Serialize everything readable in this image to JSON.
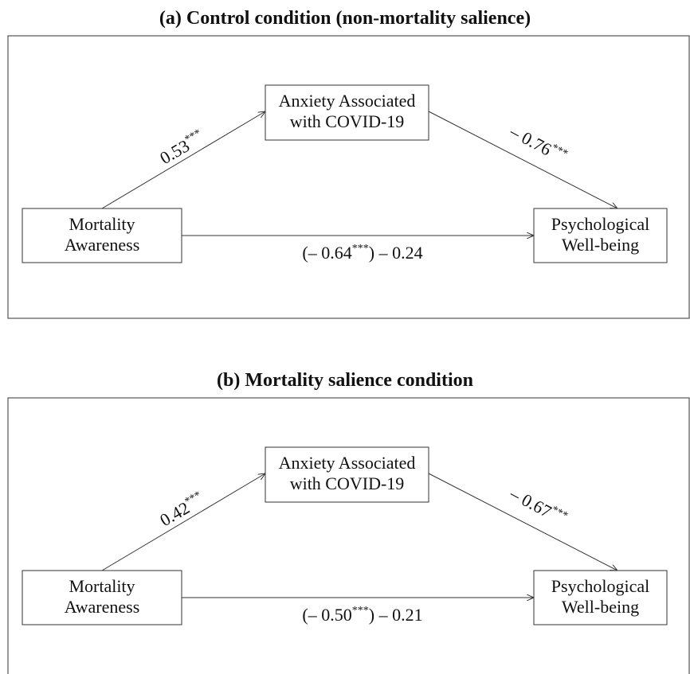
{
  "panels": [
    {
      "title": "(a) Control condition (non-mortality salience)",
      "nodes": [
        {
          "lines": [
            "Mortality",
            "Awareness"
          ]
        },
        {
          "lines": [
            "Anxiety Associated",
            "with COVID-19"
          ]
        },
        {
          "lines": [
            "Psychological",
            "Well-being"
          ]
        }
      ],
      "edges": [
        {
          "pre": "0.53",
          "sup": "***"
        },
        {
          "pre": "– 0.76",
          "sup": "***"
        },
        {
          "pre": "(– 0.64",
          "sup": "***",
          "post": ") – 0.24"
        }
      ]
    },
    {
      "title": "(b) Mortality salience condition",
      "nodes": [
        {
          "lines": [
            "Mortality",
            "Awareness"
          ]
        },
        {
          "lines": [
            "Anxiety Associated",
            "with COVID-19"
          ]
        },
        {
          "lines": [
            "Psychological",
            "Well-being"
          ]
        }
      ],
      "edges": [
        {
          "pre": "0.42",
          "sup": "***"
        },
        {
          "pre": "– 0.67",
          "sup": "***"
        },
        {
          "pre": "(– 0.50",
          "sup": "***",
          "post": ") – 0.21"
        }
      ]
    }
  ]
}
